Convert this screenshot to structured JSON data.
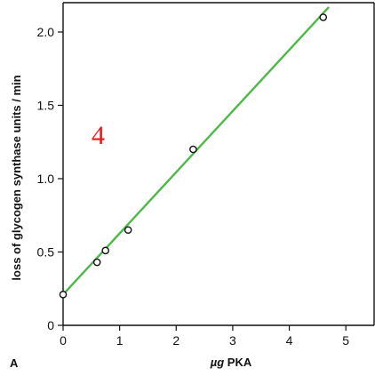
{
  "chart_data": {
    "type": "scatter",
    "xlabel_prefix": "µg",
    "xlabel_suffix": " PKA",
    "ylabel": "loss of glycogen synthase units / min",
    "panel_label": "A",
    "annotation": "4",
    "xlim": [
      0,
      5.5
    ],
    "ylim": [
      0,
      2.2
    ],
    "x_ticks": [
      0,
      1,
      2,
      3,
      4,
      5
    ],
    "x_tick_labels": [
      "0",
      "1",
      "2",
      "3",
      "4",
      "5"
    ],
    "y_ticks": [
      0,
      0.5,
      1.0,
      1.5,
      2.0
    ],
    "y_tick_labels": [
      "0",
      "0.5",
      "1.0",
      "1.5",
      "2.0"
    ],
    "grid": false,
    "series": [
      {
        "x": [
          0,
          0.6,
          0.75,
          1.15,
          2.3,
          4.6
        ],
        "y": [
          0.21,
          0.43,
          0.51,
          0.65,
          1.2,
          2.1
        ]
      }
    ],
    "fit_line": {
      "x": [
        0,
        4.7
      ],
      "y": [
        0.21,
        2.17
      ]
    },
    "colors": {
      "fit_line": "#4cb848",
      "marker_stroke": "#111111",
      "marker_fill": "#ffffff",
      "axis": "#111111",
      "annotation": "#e8181a"
    }
  }
}
